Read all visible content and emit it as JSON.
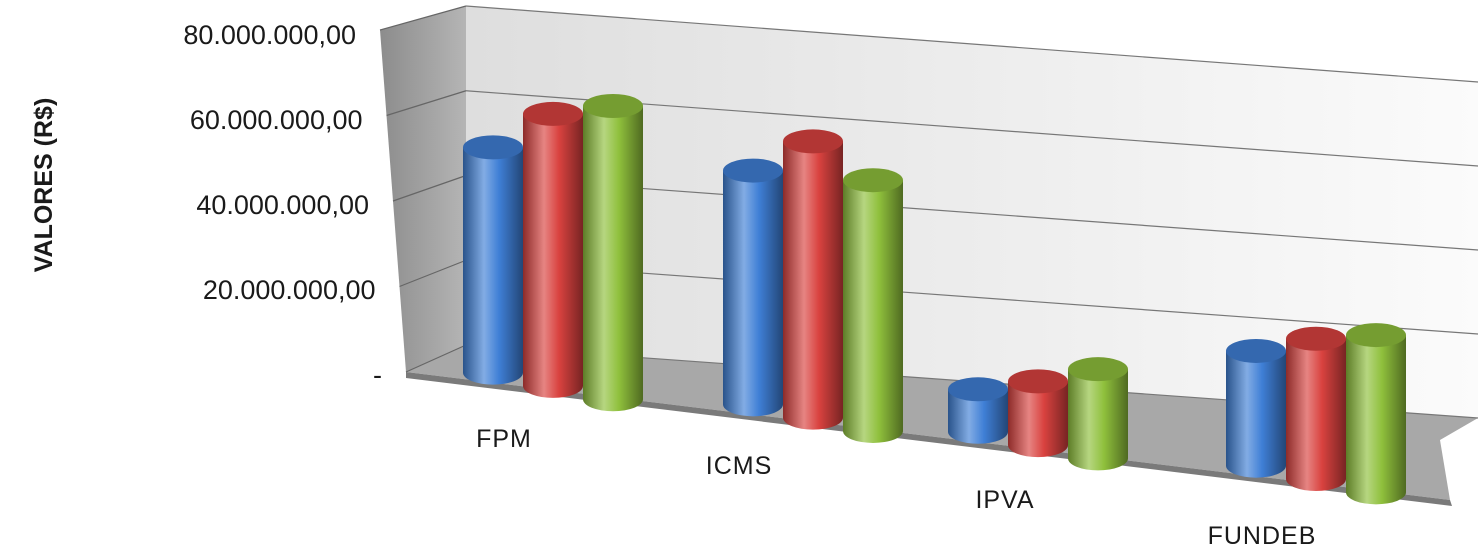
{
  "chart_data": {
    "type": "bar",
    "style": "3d-cylinder",
    "categories": [
      "FPM",
      "ICMS",
      "IPVA",
      "FUNDEB"
    ],
    "series": [
      {
        "color": "#3f7fd6",
        "values": [
          53000000,
          55000000,
          10000000,
          27000000
        ]
      },
      {
        "color": "#d9423f",
        "values": [
          64000000,
          65000000,
          15000000,
          33000000
        ]
      },
      {
        "color": "#8fc03c",
        "values": [
          69000000,
          59000000,
          21000000,
          37000000
        ]
      }
    ],
    "ylabel": "VALORES (R$)",
    "ylim": [
      0,
      80000000
    ],
    "ytick_values": [
      0,
      20000000,
      40000000,
      60000000,
      80000000
    ],
    "ytick_labels": [
      "-",
      "20.000.000,00",
      "40.000.000,00",
      "60.000.000,00",
      "80.000.000,00"
    ],
    "grid": true,
    "legend": "none"
  }
}
